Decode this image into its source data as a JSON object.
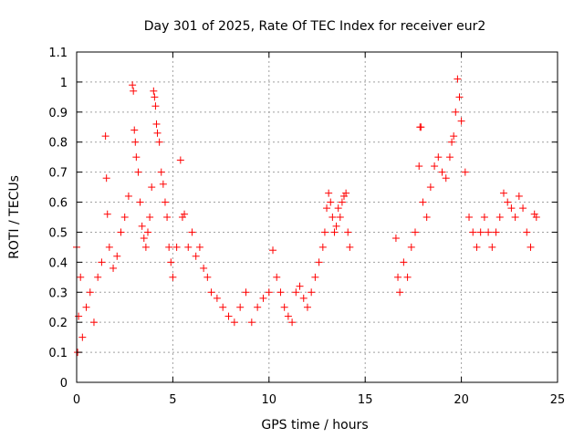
{
  "chart_data": {
    "type": "scatter",
    "title": "Day 301 of 2025, Rate Of TEC Index for receiver eur2",
    "xlabel": "GPS time / hours",
    "ylabel": "ROTI / TECUs",
    "xlim": [
      0,
      25
    ],
    "ylim": [
      0,
      1.1
    ],
    "xticks": [
      "0",
      "5",
      "10",
      "15",
      "20",
      "25"
    ],
    "yticks": [
      "0",
      "0.1",
      "0.2",
      "0.3",
      "0.4",
      "0.5",
      "0.6",
      "0.7",
      "0.8",
      "0.9",
      "1",
      "1.1"
    ],
    "grid": true,
    "marker": "+",
    "color": "#ff0000",
    "series": [
      {
        "x": [
          0.0,
          0.05,
          0.1,
          0.2,
          0.3,
          0.5,
          0.7,
          0.9,
          1.1,
          1.3,
          1.5,
          1.55,
          1.6,
          1.7,
          1.9,
          2.1,
          2.3,
          2.5,
          2.7,
          2.9,
          2.95,
          3.0,
          3.05,
          3.1,
          3.2,
          3.3,
          3.4,
          3.5,
          3.6,
          3.7,
          3.8,
          3.9,
          4.0,
          4.05,
          4.1,
          4.15,
          4.2,
          4.3,
          4.4,
          4.5,
          4.6,
          4.7,
          4.8,
          4.9,
          5.0,
          5.2,
          5.4,
          5.5,
          5.6,
          5.8,
          6.0,
          6.2,
          6.4,
          6.6,
          6.8,
          7.0,
          7.3,
          7.6,
          7.9,
          8.2,
          8.5,
          8.8,
          9.1,
          9.4,
          9.7,
          10.0,
          10.2,
          10.4,
          10.6,
          10.8,
          11.0,
          11.2,
          11.4,
          11.6,
          11.8,
          12.0,
          12.2,
          12.4,
          12.6,
          12.8,
          12.9,
          13.0,
          13.1,
          13.2,
          13.3,
          13.4,
          13.5,
          13.6,
          13.7,
          13.8,
          13.9,
          14.0,
          14.1,
          14.2,
          16.6,
          16.7,
          16.8,
          17.0,
          17.2,
          17.4,
          17.6,
          17.8,
          17.85,
          17.9,
          18.0,
          18.2,
          18.4,
          18.6,
          18.8,
          19.0,
          19.2,
          19.4,
          19.5,
          19.6,
          19.7,
          19.8,
          19.9,
          20.0,
          20.2,
          20.4,
          20.6,
          20.8,
          21.0,
          21.2,
          21.4,
          21.6,
          21.8,
          22.0,
          22.2,
          22.4,
          22.6,
          22.8,
          23.0,
          23.2,
          23.4,
          23.6,
          23.8,
          23.9
        ],
        "y": [
          0.45,
          0.1,
          0.22,
          0.35,
          0.15,
          0.25,
          0.3,
          0.2,
          0.35,
          0.4,
          0.82,
          0.68,
          0.56,
          0.45,
          0.38,
          0.42,
          0.5,
          0.55,
          0.62,
          0.99,
          0.97,
          0.84,
          0.8,
          0.75,
          0.7,
          0.6,
          0.52,
          0.48,
          0.45,
          0.5,
          0.55,
          0.65,
          0.97,
          0.95,
          0.92,
          0.86,
          0.83,
          0.8,
          0.7,
          0.66,
          0.6,
          0.55,
          0.45,
          0.4,
          0.35,
          0.45,
          0.74,
          0.55,
          0.56,
          0.45,
          0.5,
          0.42,
          0.45,
          0.38,
          0.35,
          0.3,
          0.28,
          0.25,
          0.22,
          0.2,
          0.25,
          0.3,
          0.2,
          0.25,
          0.28,
          0.3,
          0.44,
          0.35,
          0.3,
          0.25,
          0.22,
          0.2,
          0.3,
          0.32,
          0.28,
          0.25,
          0.3,
          0.35,
          0.4,
          0.45,
          0.5,
          0.58,
          0.63,
          0.6,
          0.55,
          0.5,
          0.52,
          0.58,
          0.55,
          0.6,
          0.62,
          0.63,
          0.5,
          0.45,
          0.48,
          0.35,
          0.3,
          0.4,
          0.35,
          0.45,
          0.5,
          0.72,
          0.85,
          0.85,
          0.6,
          0.55,
          0.65,
          0.72,
          0.75,
          0.7,
          0.68,
          0.75,
          0.8,
          0.82,
          0.9,
          1.01,
          0.95,
          0.87,
          0.7,
          0.55,
          0.5,
          0.45,
          0.5,
          0.55,
          0.5,
          0.45,
          0.5,
          0.55,
          0.63,
          0.6,
          0.58,
          0.55,
          0.62,
          0.58,
          0.5,
          0.45,
          0.56,
          0.55
        ]
      }
    ]
  }
}
